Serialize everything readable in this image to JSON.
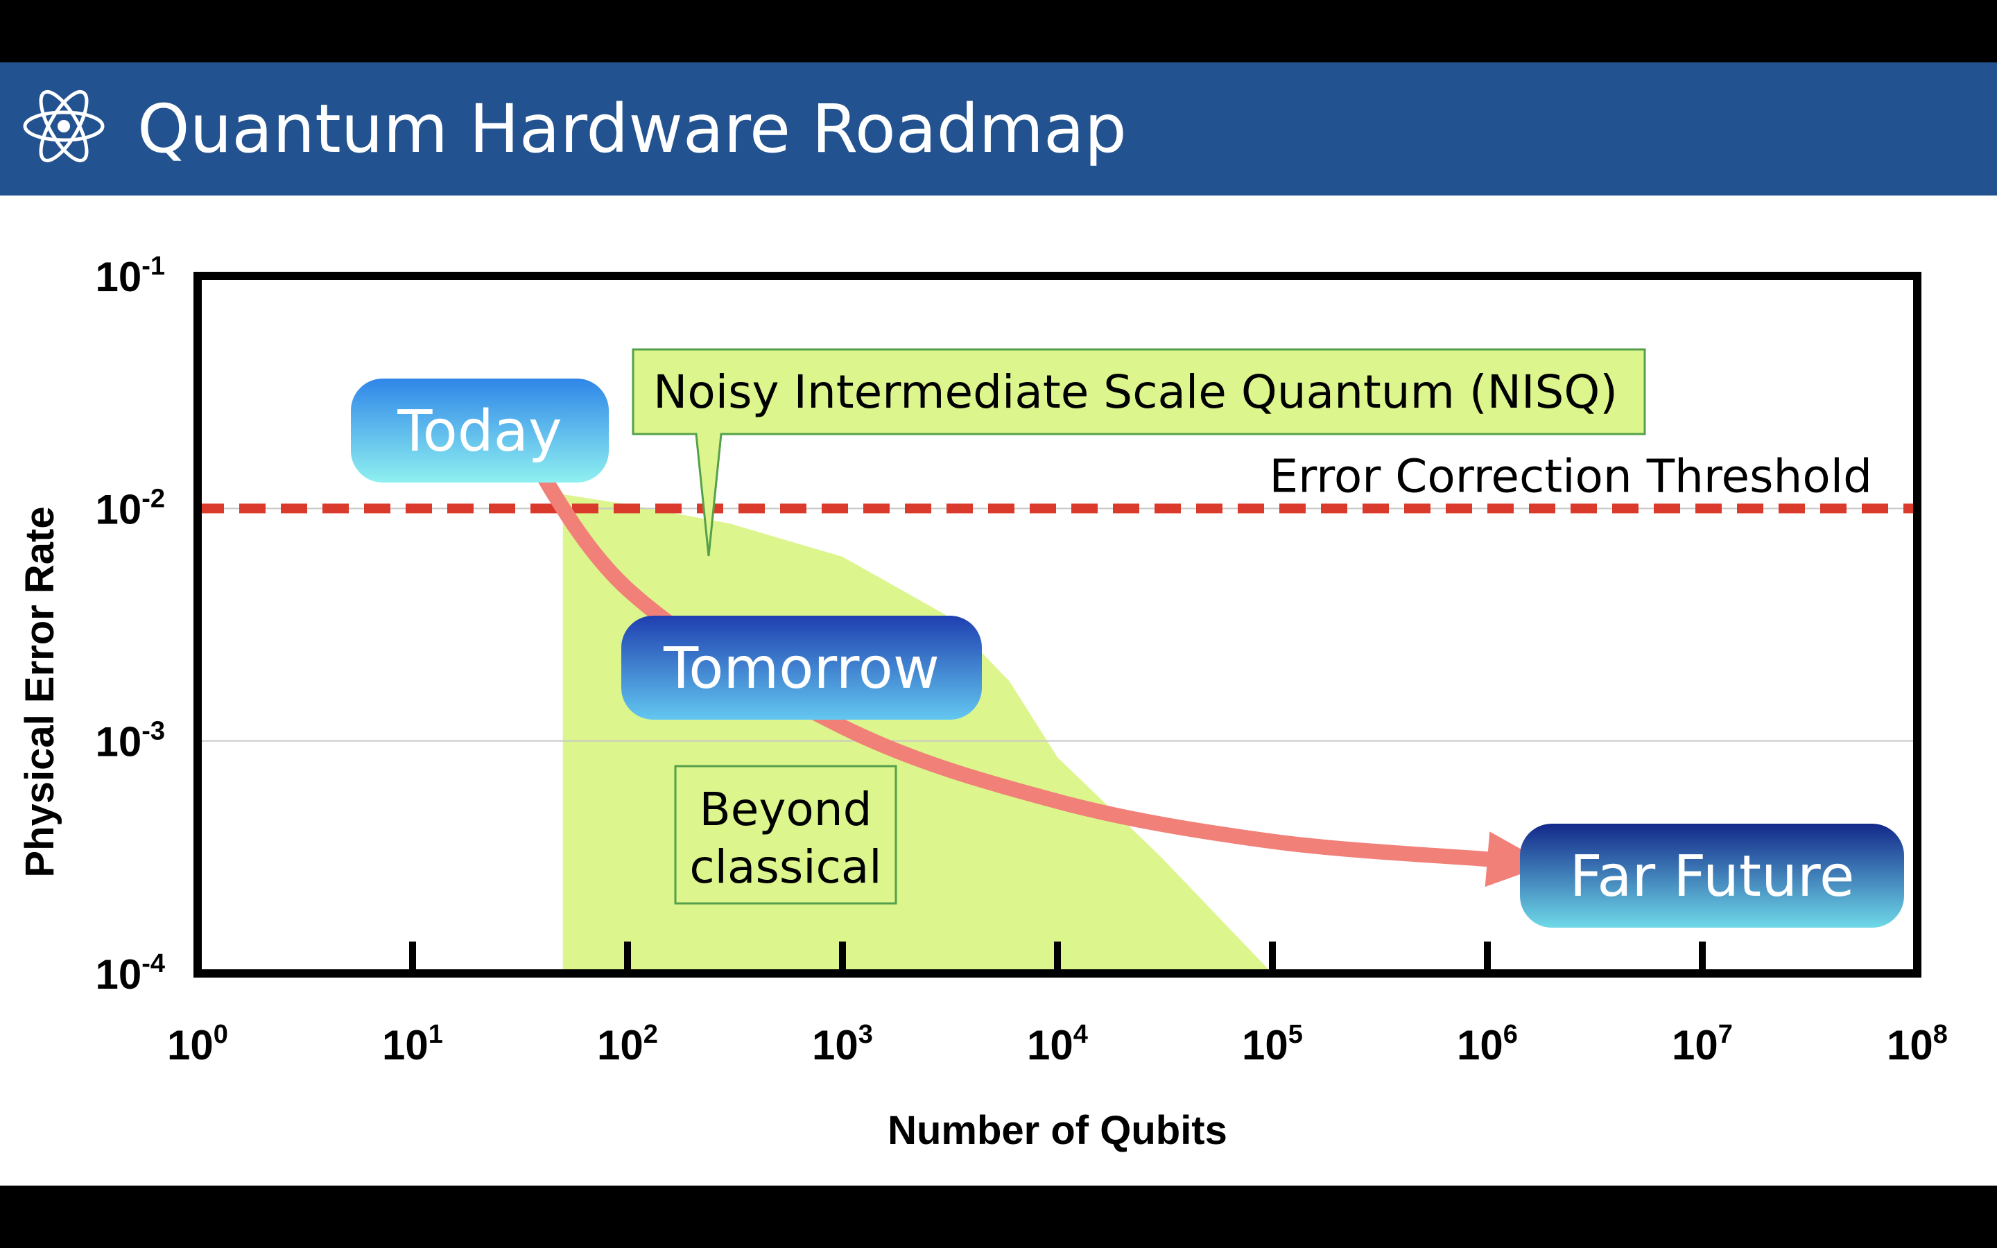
{
  "header": {
    "title": "Quantum Hardware Roadmap",
    "icon": "atom-icon",
    "background_color": "#22528f"
  },
  "chart_data": {
    "type": "scatter",
    "xlabel": "Number of Qubits",
    "ylabel": "Physical Error Rate",
    "xscale": "log",
    "yscale": "log",
    "xlim": [
      1,
      100000000
    ],
    "ylim": [
      0.0001,
      0.1
    ],
    "x_ticks": [
      {
        "base": "10",
        "exp": "0"
      },
      {
        "base": "10",
        "exp": "1"
      },
      {
        "base": "10",
        "exp": "2"
      },
      {
        "base": "10",
        "exp": "3"
      },
      {
        "base": "10",
        "exp": "4"
      },
      {
        "base": "10",
        "exp": "5"
      },
      {
        "base": "10",
        "exp": "6"
      },
      {
        "base": "10",
        "exp": "7"
      },
      {
        "base": "10",
        "exp": "8"
      }
    ],
    "y_ticks": [
      {
        "value": 0.0001,
        "base": "10",
        "exp": "-4"
      },
      {
        "value": 0.001,
        "base": "10",
        "exp": "-3"
      },
      {
        "value": 0.01,
        "base": "10",
        "exp": "-2"
      },
      {
        "value": 0.1,
        "base": "10",
        "exp": "-1"
      }
    ],
    "grid": {
      "horizontal": true,
      "vertical": false
    },
    "threshold": {
      "label": "Error Correction Threshold",
      "value": 0.01,
      "color": "#d93a2b",
      "style": "dashed"
    },
    "nisq_region": {
      "label": "Noisy Intermediate Scale Quantum (NISQ)",
      "inner_label_line1": "Beyond",
      "inner_label_line2": "classical",
      "color": "#dcf58c",
      "boundary": [
        {
          "x": 50,
          "y": 0.0115
        },
        {
          "x": 100,
          "y": 0.0104
        },
        {
          "x": 300,
          "y": 0.0086
        },
        {
          "x": 1000,
          "y": 0.0062
        },
        {
          "x": 3000,
          "y": 0.0035
        },
        {
          "x": 6000,
          "y": 0.0018
        },
        {
          "x": 10000,
          "y": 0.00085
        },
        {
          "x": 30000,
          "y": 0.00032
        },
        {
          "x": 100000,
          "y": 0.0001
        }
      ]
    },
    "trajectory": {
      "color": "#f08078",
      "points": [
        {
          "x": 30,
          "y": 0.022
        },
        {
          "x": 100,
          "y": 0.0045
        },
        {
          "x": 1000,
          "y": 0.00115
        },
        {
          "x": 10000,
          "y": 0.00055
        },
        {
          "x": 100000,
          "y": 0.00037
        },
        {
          "x": 1000000,
          "y": 0.00031
        }
      ]
    },
    "milestones": [
      {
        "label": "Today",
        "x": 30,
        "y": 0.029,
        "color_top": "#2f86e8",
        "color_bottom": "#8ff0f0"
      },
      {
        "label": "Tomorrow",
        "x": 1000,
        "y": 0.0028,
        "color_top": "#1f3fb0",
        "color_bottom": "#63c7f0"
      },
      {
        "label": "Far Future",
        "x": 3000000,
        "y": 0.00032,
        "color_top": "#13288a",
        "color_bottom": "#6fd9e8"
      }
    ]
  }
}
